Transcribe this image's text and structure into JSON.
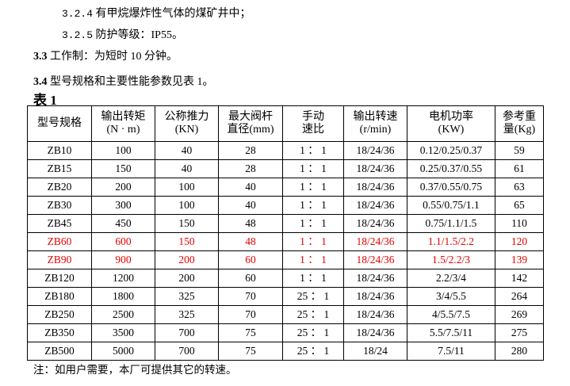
{
  "lines": {
    "l1_num": "3.2.4",
    "l1_text": "有甲烷爆炸性气体的煤矿井中；",
    "l2_num": "3.2.5",
    "l2_text": "防护等级：IP55。",
    "l3_num": "3.3",
    "l3_text": "工作制：为短时 10 分钟。",
    "l4_num": "3.4",
    "l4_text": "型号规格和主要性能参数见表 1。",
    "table_title": "表 1",
    "note": "注：如用户需要，本厂可提供其它的转速。"
  },
  "colors": {
    "highlight": "#e60000"
  },
  "table": {
    "headers": [
      [
        "型号规格",
        ""
      ],
      [
        "输出转矩",
        "(N · m)"
      ],
      [
        "公称推力",
        "(KN)"
      ],
      [
        "最大阀杆",
        "直径(mm)"
      ],
      [
        "手动",
        "速比"
      ],
      [
        "输出转速",
        "(r/min)"
      ],
      [
        "电机功率",
        "(KW)"
      ],
      [
        "参考重",
        "量(Kg)"
      ]
    ],
    "rows": [
      {
        "red": false,
        "cells": [
          "ZB10",
          "100",
          "40",
          "28",
          "1 ： 1",
          "18/24/36",
          "0.12/0.25/0.37",
          "59"
        ]
      },
      {
        "red": false,
        "cells": [
          "ZB15",
          "150",
          "40",
          "28",
          "1 ： 1",
          "18/24/36",
          "0.25/0.37/0.55",
          "61"
        ]
      },
      {
        "red": false,
        "cells": [
          "ZB20",
          "200",
          "100",
          "40",
          "1 ： 1",
          "18/24/36",
          "0.37/0.55/0.75",
          "63"
        ]
      },
      {
        "red": false,
        "cells": [
          "ZB30",
          "300",
          "100",
          "40",
          "1 ： 1",
          "18/24/36",
          "0.55/0.75/1.1",
          "65"
        ]
      },
      {
        "red": false,
        "cells": [
          "ZB45",
          "450",
          "150",
          "48",
          "1 ： 1",
          "18/24/36",
          "0.75/1.1/1.5",
          "110"
        ]
      },
      {
        "red": true,
        "cells": [
          "ZB60",
          "600",
          "150",
          "48",
          "1 ： 1",
          "18/24/36",
          "1.1/1.5/2.2",
          "120"
        ]
      },
      {
        "red": true,
        "cells": [
          "ZB90",
          "900",
          "200",
          "60",
          "1 ： 1",
          "18/24/36",
          "1.5/2.2/3",
          "139"
        ]
      },
      {
        "red": false,
        "cells": [
          "ZB120",
          "1200",
          "200",
          "60",
          "1 ： 1",
          "18/24/36",
          "2.2/3/4",
          "142"
        ]
      },
      {
        "red": false,
        "cells": [
          "ZB180",
          "1800",
          "325",
          "70",
          "25 ： 1",
          "18/24/36",
          "3/4/5.5",
          "264"
        ]
      },
      {
        "red": false,
        "cells": [
          "ZB250",
          "2500",
          "325",
          "70",
          "25 ： 1",
          "18/24/36",
          "4/5.5/7.5",
          "269"
        ]
      },
      {
        "red": false,
        "cells": [
          "ZB350",
          "3500",
          "700",
          "75",
          "25 ： 1",
          "18/24/36",
          "5.5/7.5/11",
          "275"
        ]
      },
      {
        "red": false,
        "cells": [
          "ZB500",
          "5000",
          "700",
          "75",
          "25 ： 1",
          "18/24",
          "7.5/11",
          "280"
        ]
      }
    ]
  }
}
